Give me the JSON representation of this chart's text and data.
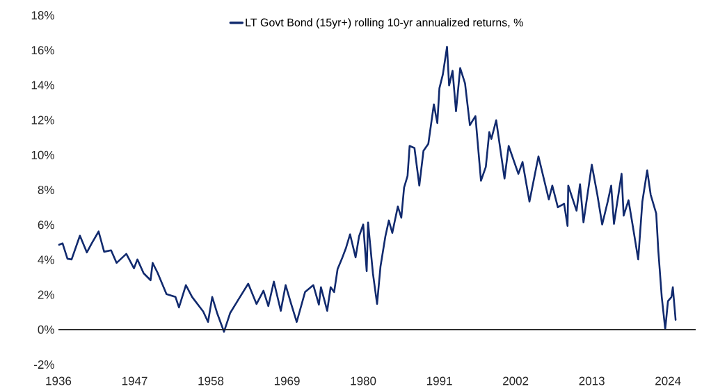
{
  "chart_data": {
    "type": "line",
    "legend": "top",
    "grid": false,
    "marker": "none",
    "line_style": "solid",
    "xlim": [
      1936,
      2028
    ],
    "ylim": [
      -2,
      18
    ],
    "xticks": [
      1936,
      1947,
      1958,
      1969,
      1980,
      1991,
      2002,
      2013,
      2024
    ],
    "yticks": [
      {
        "value": -2,
        "label": "-2%"
      },
      {
        "value": 0,
        "label": "0%"
      },
      {
        "value": 2,
        "label": "2%"
      },
      {
        "value": 4,
        "label": "4%"
      },
      {
        "value": 6,
        "label": "6%"
      },
      {
        "value": 8,
        "label": "8%"
      },
      {
        "value": 10,
        "label": "10%"
      },
      {
        "value": 12,
        "label": "12%"
      },
      {
        "value": 14,
        "label": "14%"
      },
      {
        "value": 16,
        "label": "16%"
      },
      {
        "value": 18,
        "label": "18%"
      }
    ],
    "ref_lines": [
      {
        "axis": "y",
        "value": 0,
        "color": "#1a1a1a"
      }
    ],
    "series": [
      {
        "name": "LT Govt Bond (15yr+) rolling 10-yr annualized returns, %",
        "color": "#112a6e",
        "x": [
          1936.1,
          1936.6,
          1937.3,
          1937.9,
          1939.1,
          1940.1,
          1940.8,
          1941.8,
          1942.6,
          1943.6,
          1944.4,
          1945.8,
          1946.9,
          1947.4,
          1948.3,
          1949.3,
          1949.6,
          1950.3,
          1951.6,
          1952.9,
          1953.4,
          1954.4,
          1955.3,
          1956.9,
          1957.6,
          1958.2,
          1958.9,
          1959.9,
          1960.8,
          1961.9,
          1963.4,
          1964.6,
          1965.6,
          1966.3,
          1967.1,
          1968.1,
          1968.8,
          1969.6,
          1970.4,
          1971.6,
          1972.8,
          1973.6,
          1973.9,
          1974.8,
          1975.3,
          1975.8,
          1976.3,
          1977.0,
          1977.5,
          1978.1,
          1978.9,
          1979.4,
          1980.0,
          1980.5,
          1980.7,
          1981.4,
          1982.0,
          1982.5,
          1983.2,
          1983.7,
          1984.2,
          1985.0,
          1985.5,
          1985.9,
          1986.4,
          1986.7,
          1987.4,
          1988.1,
          1988.7,
          1989.4,
          1990.2,
          1990.7,
          1991.0,
          1991.5,
          1992.1,
          1992.4,
          1992.9,
          1993.4,
          1994.0,
          1994.7,
          1995.4,
          1996.2,
          1997.0,
          1997.7,
          1998.2,
          1998.5,
          1999.2,
          2000.4,
          2001.0,
          2002.4,
          2003.0,
          2004.0,
          2005.3,
          2006.8,
          2007.3,
          2008.1,
          2009.0,
          2009.5,
          2009.6,
          2010.8,
          2011.3,
          2011.8,
          2013.0,
          2013.8,
          2014.5,
          2015.3,
          2015.8,
          2016.2,
          2017.3,
          2017.6,
          2018.3,
          2019.0,
          2019.7,
          2020.3,
          2021.0,
          2021.5,
          2022.3,
          2022.6,
          2023.1,
          2023.6,
          2024.0,
          2024.5,
          2024.7,
          2025.1
        ],
        "values": [
          4.86,
          4.94,
          4.06,
          4.02,
          5.38,
          4.42,
          4.94,
          5.62,
          4.46,
          4.54,
          3.82,
          4.34,
          3.51,
          4.02,
          3.23,
          2.83,
          3.82,
          3.27,
          2.03,
          1.87,
          1.27,
          2.55,
          1.87,
          1.04,
          0.44,
          1.87,
          0.96,
          -0.12,
          0.96,
          1.67,
          2.63,
          1.47,
          2.23,
          1.35,
          2.75,
          1.08,
          2.55,
          1.47,
          0.44,
          2.15,
          2.55,
          1.43,
          2.43,
          1.08,
          2.43,
          2.15,
          3.47,
          4.14,
          4.66,
          5.46,
          4.14,
          5.34,
          6.02,
          3.35,
          6.14,
          3.23,
          1.47,
          3.63,
          5.34,
          6.25,
          5.54,
          7.05,
          6.41,
          8.13,
          8.8,
          10.52,
          10.4,
          8.25,
          10.24,
          10.64,
          12.9,
          11.83,
          13.82,
          14.62,
          16.2,
          13.98,
          14.82,
          12.51,
          14.98,
          14.1,
          11.71,
          12.23,
          8.53,
          9.32,
          11.31,
          10.92,
          11.99,
          8.65,
          10.52,
          8.92,
          9.6,
          7.33,
          9.92,
          7.45,
          8.25,
          7.01,
          7.21,
          5.94,
          8.25,
          6.81,
          8.33,
          6.14,
          9.44,
          7.73,
          6.02,
          7.33,
          8.25,
          6.06,
          8.92,
          6.53,
          7.41,
          5.74,
          4.02,
          7.33,
          9.12,
          7.73,
          6.65,
          4.54,
          1.87,
          0.04,
          1.63,
          1.87,
          2.43,
          0.56
        ]
      }
    ]
  }
}
